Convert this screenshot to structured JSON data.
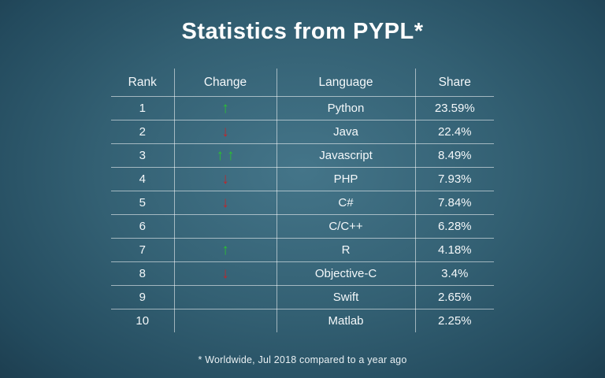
{
  "title": "Statistics from PYPL*",
  "footnote": "* Worldwide, Jul 2018 compared to a year ago",
  "colors": {
    "arrow_up": "#2bc130",
    "arrow_down": "#c0262c",
    "background_center": "#447589",
    "background_edge": "#152e3e",
    "text": "#ffffff"
  },
  "table": {
    "headers": [
      "Rank",
      "Change",
      "Language",
      "Share"
    ],
    "rows": [
      {
        "rank": "1",
        "change": "up",
        "language": "Python",
        "share": "23.59%"
      },
      {
        "rank": "2",
        "change": "down",
        "language": "Java",
        "share": "22.4%"
      },
      {
        "rank": "3",
        "change": "up-double",
        "language": "Javascript",
        "share": "8.49%"
      },
      {
        "rank": "4",
        "change": "down",
        "language": "PHP",
        "share": "7.93%"
      },
      {
        "rank": "5",
        "change": "down",
        "language": "C#",
        "share": "7.84%"
      },
      {
        "rank": "6",
        "change": "none",
        "language": "C/C++",
        "share": "6.28%"
      },
      {
        "rank": "7",
        "change": "up",
        "language": "R",
        "share": "4.18%"
      },
      {
        "rank": "8",
        "change": "down",
        "language": "Objective-C",
        "share": "3.4%"
      },
      {
        "rank": "9",
        "change": "none",
        "language": "Swift",
        "share": "2.65%"
      },
      {
        "rank": "10",
        "change": "none",
        "language": "Matlab",
        "share": "2.25%"
      }
    ]
  },
  "chart_data": {
    "type": "table",
    "title": "Statistics from PYPL*",
    "columns": [
      "Rank",
      "Change",
      "Language",
      "Share"
    ],
    "rows": [
      [
        1,
        "up",
        "Python",
        "23.59%"
      ],
      [
        2,
        "down",
        "Java",
        "22.4%"
      ],
      [
        3,
        "up-double",
        "Javascript",
        "8.49%"
      ],
      [
        4,
        "down",
        "PHP",
        "7.93%"
      ],
      [
        5,
        "down",
        "C#",
        "7.84%"
      ],
      [
        6,
        "none",
        "C/C++",
        "6.28%"
      ],
      [
        7,
        "up",
        "R",
        "4.18%"
      ],
      [
        8,
        "down",
        "Objective-C",
        "3.4%"
      ],
      [
        9,
        "none",
        "Swift",
        "2.65%"
      ],
      [
        10,
        "none",
        "Matlab",
        "2.25%"
      ]
    ],
    "footnote": "* Worldwide, Jul 2018 compared to a year ago"
  }
}
